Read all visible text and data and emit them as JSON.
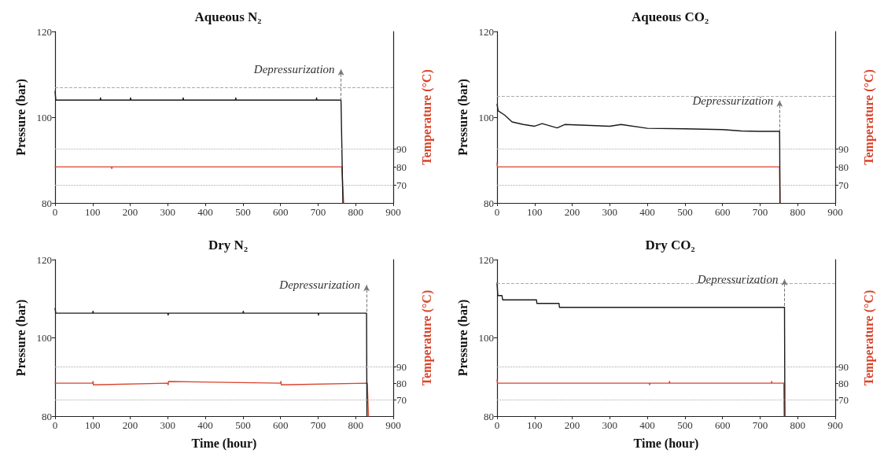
{
  "chart_data": [
    {
      "type": "line",
      "title": "Aqueous N₂",
      "ylabel": "Pressure (bar)",
      "y2label": "Temperature (°C)",
      "xlim": [
        0,
        900
      ],
      "xticks": [
        0,
        100,
        200,
        300,
        400,
        500,
        600,
        700,
        800,
        900
      ],
      "ylim": [
        80,
        120
      ],
      "yticks": [
        80,
        100,
        120
      ],
      "y2lim": [
        60,
        155
      ],
      "y2ticks": [
        70,
        80,
        90
      ],
      "grid": false,
      "marker": "none",
      "line_style": "solid",
      "series": [
        {
          "color": "#1a1a1a",
          "x": [
            0,
            2,
            3,
            120,
            121,
            122,
            200,
            201,
            202,
            340,
            341,
            342,
            480,
            481,
            482,
            695,
            696,
            697,
            761,
            766
          ],
          "values": [
            106,
            104,
            104,
            104,
            104.5,
            104,
            104,
            104.5,
            104,
            104,
            104.5,
            104,
            104,
            104.5,
            104,
            104,
            104.5,
            104,
            104,
            80
          ]
        },
        {
          "color": "#d9432b",
          "axis": "y2",
          "x": [
            0,
            150,
            151,
            152,
            400,
            763,
            768
          ],
          "values": [
            80,
            80,
            79,
            80,
            80,
            80,
            60
          ]
        }
      ],
      "ref_lines": [
        {
          "axis": "y",
          "value": 107,
          "color": "#aaaaaa",
          "line_style": "dashed"
        },
        {
          "axis": "y2",
          "value": 90,
          "color": "#aaaaaa",
          "line_style": "dotted"
        },
        {
          "axis": "y2",
          "value": 70,
          "color": "#aaaaaa",
          "line_style": "dotted"
        }
      ],
      "annotations": [
        {
          "text": "Depressurization",
          "x": 761,
          "y": 104
        }
      ]
    },
    {
      "type": "line",
      "title": "Aqueous CO₂",
      "ylabel": "Pressure (bar)",
      "y2label": "Temperature (°C)",
      "xlim": [
        0,
        900
      ],
      "xticks": [
        0,
        100,
        200,
        300,
        400,
        500,
        600,
        700,
        800,
        900
      ],
      "ylim": [
        80,
        120
      ],
      "yticks": [
        80,
        100,
        120
      ],
      "y2lim": [
        60,
        155
      ],
      "y2ticks": [
        70,
        80,
        90
      ],
      "grid": false,
      "marker": "none",
      "line_style": "solid",
      "series": [
        {
          "color": "#1a1a1a",
          "x": [
            0,
            3,
            20,
            40,
            70,
            100,
            120,
            160,
            180,
            300,
            330,
            400,
            500,
            600,
            650,
            700,
            752,
            753
          ],
          "values": [
            103,
            101.5,
            100.5,
            98.9,
            98.3,
            97.9,
            98.5,
            97.5,
            98.3,
            97.9,
            98.3,
            97.4,
            97.3,
            97.1,
            96.8,
            96.7,
            96.7,
            80
          ]
        },
        {
          "color": "#d9432b",
          "axis": "y2",
          "x": [
            0,
            1,
            752,
            753
          ],
          "values": [
            82,
            80,
            80,
            60
          ]
        }
      ],
      "ref_lines": [
        {
          "axis": "y",
          "value": 105,
          "color": "#aaaaaa",
          "line_style": "dashed"
        },
        {
          "axis": "y2",
          "value": 90,
          "color": "#aaaaaa",
          "line_style": "dotted"
        },
        {
          "axis": "y2",
          "value": 70,
          "color": "#aaaaaa",
          "line_style": "dotted"
        }
      ],
      "annotations": [
        {
          "text": "Depressurization",
          "x": 752,
          "y": 96.7
        }
      ]
    },
    {
      "type": "line",
      "title": "Dry N₂",
      "xlabel": "Time (hour)",
      "ylabel": "Pressure (bar)",
      "y2label": "Temperature (°C)",
      "xlim": [
        0,
        900
      ],
      "xticks": [
        0,
        100,
        200,
        300,
        400,
        500,
        600,
        700,
        800,
        900
      ],
      "ylim": [
        80,
        120
      ],
      "yticks": [
        80,
        100,
        120
      ],
      "y2lim": [
        60,
        155
      ],
      "y2ticks": [
        70,
        80,
        90
      ],
      "grid": false,
      "marker": "none",
      "line_style": "solid",
      "series": [
        {
          "color": "#1a1a1a",
          "x": [
            0,
            2,
            100,
            101,
            102,
            300,
            301,
            302,
            500,
            501,
            502,
            700,
            701,
            702,
            829,
            830
          ],
          "values": [
            107.5,
            106.3,
            106.3,
            106.8,
            106.3,
            106.3,
            105.8,
            106.3,
            106.3,
            106.8,
            106.3,
            106.3,
            105.8,
            106.3,
            106.3,
            80
          ]
        },
        {
          "color": "#d9432b",
          "axis": "y2",
          "x": [
            0,
            100,
            101,
            102,
            300,
            301,
            302,
            600,
            601,
            602,
            831,
            834
          ],
          "values": [
            80,
            80,
            81,
            79,
            80,
            79,
            81,
            80,
            81,
            79,
            80,
            60
          ]
        }
      ],
      "ref_lines": [
        {
          "axis": "y2",
          "value": 90,
          "color": "#aaaaaa",
          "line_style": "dotted"
        },
        {
          "axis": "y2",
          "value": 70,
          "color": "#aaaaaa",
          "line_style": "dotted"
        }
      ],
      "annotations": [
        {
          "text": "Depressurization",
          "x": 829,
          "y": 106.3
        }
      ]
    },
    {
      "type": "line",
      "title": "Dry CO₂",
      "xlabel": "Time (hour)",
      "ylabel": "Pressure (bar)",
      "y2label": "Temperature (°C)",
      "xlim": [
        0,
        900
      ],
      "xticks": [
        0,
        100,
        200,
        300,
        400,
        500,
        600,
        700,
        800,
        900
      ],
      "ylim": [
        80,
        120
      ],
      "yticks": [
        80,
        100,
        120
      ],
      "y2lim": [
        60,
        155
      ],
      "y2ticks": [
        70,
        80,
        90
      ],
      "grid": false,
      "marker": "none",
      "line_style": "solid",
      "series": [
        {
          "color": "#1a1a1a",
          "x": [
            0,
            2,
            13,
            15,
            105,
            106,
            165,
            166,
            765,
            766
          ],
          "values": [
            114,
            110.8,
            110.8,
            109.7,
            109.7,
            108.8,
            108.8,
            107.8,
            107.8,
            80
          ]
        },
        {
          "color": "#d9432b",
          "axis": "y2",
          "x": [
            0,
            1,
            2,
            405,
            406,
            407,
            458,
            459,
            460,
            730,
            731,
            732,
            763,
            764
          ],
          "values": [
            82,
            80,
            80,
            80,
            79,
            80,
            80,
            81,
            80,
            80,
            81,
            80,
            80,
            60
          ]
        }
      ],
      "ref_lines": [
        {
          "axis": "y",
          "value": 114,
          "color": "#aaaaaa",
          "line_style": "dashed"
        },
        {
          "axis": "y2",
          "value": 90,
          "color": "#aaaaaa",
          "line_style": "dotted"
        },
        {
          "axis": "y2",
          "value": 70,
          "color": "#aaaaaa",
          "line_style": "dotted"
        }
      ],
      "annotations": [
        {
          "text": "Depressurization",
          "x": 765,
          "y": 107.8
        }
      ]
    }
  ]
}
